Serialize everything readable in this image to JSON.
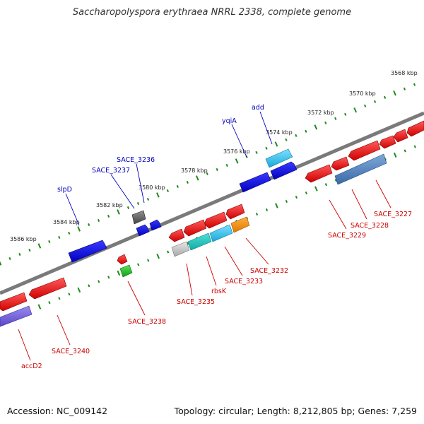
{
  "title": "Saccharopolyspora erythraea NRRL 2338, complete genome",
  "footer": {
    "accession": "Accession: NC_009142",
    "stats": "Topology: circular; Length: 8,212,805 bp; Genes: 7,259"
  },
  "colors": {
    "backbone": "#7a7a7a",
    "tick": "#1f8a1f",
    "forward_label": "#0000bb",
    "reverse_label": "#cc0000"
  },
  "ticks": [
    {
      "label": "3568 kbp"
    },
    {
      "label": "3570 kbp"
    },
    {
      "label": "3572 kbp"
    },
    {
      "label": "3574 kbp"
    },
    {
      "label": "3576 kbp"
    },
    {
      "label": "3578 kbp"
    },
    {
      "label": "3580 kbp"
    },
    {
      "label": "3582 kbp"
    },
    {
      "label": "3584 kbp"
    },
    {
      "label": "3586 kbp"
    }
  ],
  "forward_labels": [
    {
      "text": "add"
    },
    {
      "text": "yqiA"
    },
    {
      "text": "SACE_3236"
    },
    {
      "text": "SACE_3237"
    },
    {
      "text": "slpD"
    }
  ],
  "reverse_labels": [
    {
      "text": "SACE_3227"
    },
    {
      "text": "SACE_3228"
    },
    {
      "text": "SACE_3229"
    },
    {
      "text": "SACE_3232"
    },
    {
      "text": "SACE_3233"
    },
    {
      "text": "rbsK"
    },
    {
      "text": "SACE_3235"
    },
    {
      "text": "SACE_3238"
    },
    {
      "text": "SACE_3240"
    },
    {
      "text": "accD2"
    }
  ]
}
